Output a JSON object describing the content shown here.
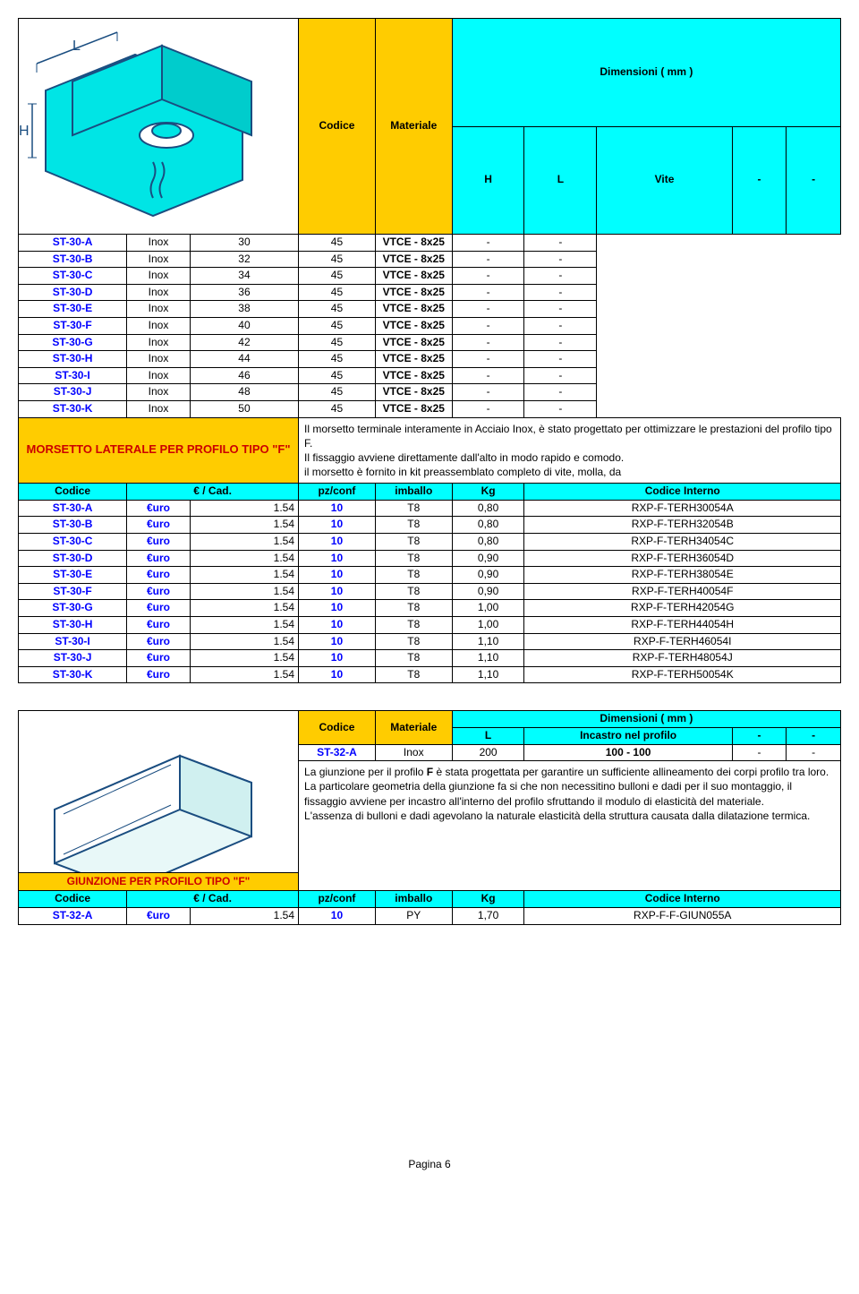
{
  "section1": {
    "title": "MORSETTO LATERALE PER PROFILO TIPO \"F\"",
    "dim_header": "Dimensioni ( mm )",
    "hdr": {
      "codice": "Codice",
      "materiale": "Materiale",
      "h": "H",
      "l": "L",
      "vite": "Vite",
      "dash": "-"
    },
    "rows": [
      {
        "c": "ST-30-A",
        "m": "Inox",
        "h": "30",
        "l": "45",
        "v": "VTCE - 8x25"
      },
      {
        "c": "ST-30-B",
        "m": "Inox",
        "h": "32",
        "l": "45",
        "v": "VTCE - 8x25"
      },
      {
        "c": "ST-30-C",
        "m": "Inox",
        "h": "34",
        "l": "45",
        "v": "VTCE - 8x25"
      },
      {
        "c": "ST-30-D",
        "m": "Inox",
        "h": "36",
        "l": "45",
        "v": "VTCE - 8x25"
      },
      {
        "c": "ST-30-E",
        "m": "Inox",
        "h": "38",
        "l": "45",
        "v": "VTCE - 8x25"
      },
      {
        "c": "ST-30-F",
        "m": "Inox",
        "h": "40",
        "l": "45",
        "v": "VTCE - 8x25"
      },
      {
        "c": "ST-30-G",
        "m": "Inox",
        "h": "42",
        "l": "45",
        "v": "VTCE - 8x25"
      },
      {
        "c": "ST-30-H",
        "m": "Inox",
        "h": "44",
        "l": "45",
        "v": "VTCE - 8x25"
      },
      {
        "c": "ST-30-I",
        "m": "Inox",
        "h": "46",
        "l": "45",
        "v": "VTCE - 8x25"
      },
      {
        "c": "ST-30-J",
        "m": "Inox",
        "h": "48",
        "l": "45",
        "v": "VTCE - 8x25"
      },
      {
        "c": "ST-30-K",
        "m": "Inox",
        "h": "50",
        "l": "45",
        "v": "VTCE - 8x25"
      }
    ],
    "desc": "Il morsetto terminale interamente in Acciaio Inox, è stato progettato per ottimizzare le prestazioni del profilo tipo F.\nIl fissaggio avviene direttamente dall'alto in modo rapido e comodo.\nil morsetto è fornito in kit preassemblato completo di vite, molla, da",
    "price_hdr": {
      "codice": "Codice",
      "cad": "€ / Cad.",
      "pz": "pz/conf",
      "imb": "imballo",
      "kg": "Kg",
      "ci": "Codice Interno"
    },
    "prices": [
      {
        "c": "ST-30-A",
        "cur": "€uro",
        "p": "1.54",
        "pz": "10",
        "imb": "T8",
        "kg": "0,80",
        "ci": "RXP-F-TERH30054A"
      },
      {
        "c": "ST-30-B",
        "cur": "€uro",
        "p": "1.54",
        "pz": "10",
        "imb": "T8",
        "kg": "0,80",
        "ci": "RXP-F-TERH32054B"
      },
      {
        "c": "ST-30-C",
        "cur": "€uro",
        "p": "1.54",
        "pz": "10",
        "imb": "T8",
        "kg": "0,80",
        "ci": "RXP-F-TERH34054C"
      },
      {
        "c": "ST-30-D",
        "cur": "€uro",
        "p": "1.54",
        "pz": "10",
        "imb": "T8",
        "kg": "0,90",
        "ci": "RXP-F-TERH36054D"
      },
      {
        "c": "ST-30-E",
        "cur": "€uro",
        "p": "1.54",
        "pz": "10",
        "imb": "T8",
        "kg": "0,90",
        "ci": "RXP-F-TERH38054E"
      },
      {
        "c": "ST-30-F",
        "cur": "€uro",
        "p": "1.54",
        "pz": "10",
        "imb": "T8",
        "kg": "0,90",
        "ci": "RXP-F-TERH40054F"
      },
      {
        "c": "ST-30-G",
        "cur": "€uro",
        "p": "1.54",
        "pz": "10",
        "imb": "T8",
        "kg": "1,00",
        "ci": "RXP-F-TERH42054G"
      },
      {
        "c": "ST-30-H",
        "cur": "€uro",
        "p": "1.54",
        "pz": "10",
        "imb": "T8",
        "kg": "1,00",
        "ci": "RXP-F-TERH44054H"
      },
      {
        "c": "ST-30-I",
        "cur": "€uro",
        "p": "1.54",
        "pz": "10",
        "imb": "T8",
        "kg": "1,10",
        "ci": "RXP-F-TERH46054I"
      },
      {
        "c": "ST-30-J",
        "cur": "€uro",
        "p": "1.54",
        "pz": "10",
        "imb": "T8",
        "kg": "1,10",
        "ci": "RXP-F-TERH48054J"
      },
      {
        "c": "ST-30-K",
        "cur": "€uro",
        "p": "1.54",
        "pz": "10",
        "imb": "T8",
        "kg": "1,10",
        "ci": "RXP-F-TERH50054K"
      }
    ]
  },
  "section2": {
    "title": "GIUNZIONE PER PROFILO TIPO \"F\"",
    "dim_header": "Dimensioni ( mm )",
    "hdr": {
      "codice": "Codice",
      "materiale": "Materiale",
      "l": "L",
      "inc": "Incastro nel profilo",
      "dash": "-"
    },
    "row": {
      "c": "ST-32-A",
      "m": "Inox",
      "l": "200",
      "inc": "100 - 100"
    },
    "desc": "La giunzione per il profilo F è stata progettata per garantire un sufficiente allineamento dei corpi profilo tra loro.\nLa particolare geometria della giunzione fa si che non necessitino bulloni e dadi per il suo montaggio, il fissaggio avviene per incastro all'interno del profilo sfruttando il modulo di elasticità del materiale.\nL'assenza di bulloni e dadi agevolano la naturale elasticità della struttura causata dalla dilatazione termica.",
    "price_hdr": {
      "codice": "Codice",
      "cad": "€ / Cad.",
      "pz": "pz/conf",
      "imb": "imballo",
      "kg": "Kg",
      "ci": "Codice Interno"
    },
    "price": {
      "c": "ST-32-A",
      "cur": "€uro",
      "p": "1.54",
      "pz": "10",
      "imb": "PY",
      "kg": "1,70",
      "ci": "RXP-F-F-GIUN055A"
    }
  },
  "footer": "Pagina 6",
  "colors": {
    "yellow": "#ffcc00",
    "cyan": "#00ffff",
    "blue": "#0000ff",
    "red": "#cc0000"
  }
}
